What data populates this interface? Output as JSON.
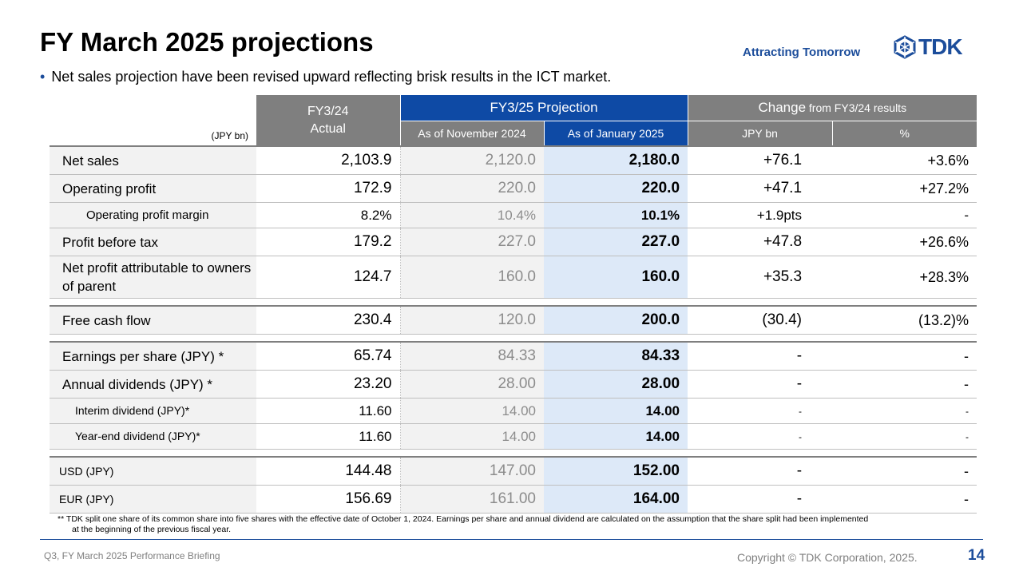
{
  "header": {
    "title": "FY March 2025 projections",
    "tagline": "Attracting Tomorrow",
    "logo_text": "TDK",
    "bullet": "Net sales projection have been revised upward reflecting brisk results in the ICT market."
  },
  "colors": {
    "brand_blue": "#1c4d9b",
    "header_blue": "#0e4aa5",
    "header_grey": "#7f7f7f",
    "highlight_col": "#dde9f8"
  },
  "table": {
    "unit": "(JPY bn)",
    "col_actual_line1": "FY3/24",
    "col_actual_line2": "Actual",
    "col_projection": "FY3/25 Projection",
    "col_change": "Change",
    "col_change_suffix": " from FY3/24 results",
    "sub_nov": "As of November 2024",
    "sub_jan": "As of January 2025",
    "sub_jpybn": "JPY bn",
    "sub_pct": "%",
    "rows": [
      {
        "label": "Net sales",
        "actual": "2,103.9",
        "nov": "2,120.0",
        "jan": "2,180.0",
        "chg": "+76.1",
        "pct": "+3.6%"
      },
      {
        "label": "Operating profit",
        "actual": "172.9",
        "nov": "220.0",
        "jan": "220.0",
        "chg": "+47.1",
        "pct": "+27.2%"
      },
      {
        "label": "Operating profit margin",
        "actual": "8.2%",
        "nov": "10.4%",
        "jan": "10.1%",
        "chg": "+1.9pts",
        "pct": "-"
      },
      {
        "label": "Profit before tax",
        "actual": "179.2",
        "nov": "227.0",
        "jan": "227.0",
        "chg": "+47.8",
        "pct": "+26.6%"
      },
      {
        "label": "Net profit attributable to owners of parent",
        "actual": "124.7",
        "nov": "160.0",
        "jan": "160.0",
        "chg": "+35.3",
        "pct": "+28.3%"
      },
      {
        "label": "Free cash flow",
        "actual": "230.4",
        "nov": "120.0",
        "jan": "200.0",
        "chg": "(30.4)",
        "pct": "(13.2)%"
      },
      {
        "label": "Earnings per share (JPY) *",
        "actual": "65.74",
        "nov": "84.33",
        "jan": "84.33",
        "chg": "-",
        "pct": "-"
      },
      {
        "label": "Annual dividends (JPY) *",
        "actual": "23.20",
        "nov": "28.00",
        "jan": "28.00",
        "chg": "-",
        "pct": "-"
      },
      {
        "label": "Interim dividend (JPY)*",
        "actual": "11.60",
        "nov": "14.00",
        "jan": "14.00",
        "chg": "-",
        "pct": "-"
      },
      {
        "label": "Year-end dividend (JPY)*",
        "actual": "11.60",
        "nov": "14.00",
        "jan": "14.00",
        "chg": "-",
        "pct": "-"
      },
      {
        "label": "USD (JPY)",
        "actual": "144.48",
        "nov": "147.00",
        "jan": "152.00",
        "chg": "-",
        "pct": "-"
      },
      {
        "label": "EUR (JPY)",
        "actual": "156.69",
        "nov": "161.00",
        "jan": "164.00",
        "chg": "-",
        "pct": "-"
      }
    ]
  },
  "footnote": {
    "line1": "** TDK split one share of its common share into five shares with the effective date of October 1, 2024. Earnings per share and annual dividend are calculated on the assumption that the share split had been implemented",
    "line2": "at the beginning of the previous fiscal year."
  },
  "footer": {
    "left": "Q3, FY March 2025 Performance Briefing",
    "copyright": "Copyright © TDK Corporation, 2025.",
    "page": "14"
  }
}
